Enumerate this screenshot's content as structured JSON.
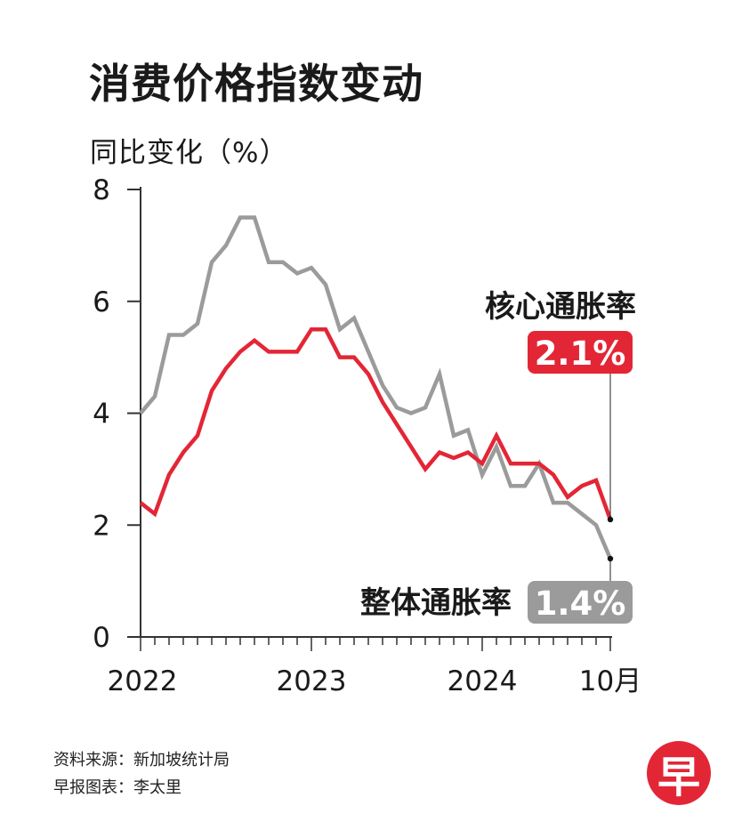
{
  "title": "消费价格指数变动",
  "ylabel": "同比变化（%）",
  "source_line1": "资料来源：新加坡统计局",
  "source_line2": "早报图表：李太里",
  "logo_text": "早",
  "colors": {
    "core": "#e32636",
    "headline": "#9b9b9b",
    "axis": "#333333"
  },
  "chart_data": {
    "type": "line",
    "ylim": [
      0,
      8
    ],
    "yticks": [
      0,
      2,
      4,
      6,
      8
    ],
    "x_tick_labels": [
      {
        "label": "2022",
        "month_index": 0
      },
      {
        "label": "2023",
        "month_index": 12
      },
      {
        "label": "2024",
        "month_index": 24
      },
      {
        "label": "10月",
        "month_index": 33
      }
    ],
    "months": [
      "2022-01",
      "2022-02",
      "2022-03",
      "2022-04",
      "2022-05",
      "2022-06",
      "2022-07",
      "2022-08",
      "2022-09",
      "2022-10",
      "2022-11",
      "2022-12",
      "2023-01",
      "2023-02",
      "2023-03",
      "2023-04",
      "2023-05",
      "2023-06",
      "2023-07",
      "2023-08",
      "2023-09",
      "2023-10",
      "2023-11",
      "2023-12",
      "2024-01",
      "2024-02",
      "2024-03",
      "2024-04",
      "2024-05",
      "2024-06",
      "2024-07",
      "2024-08",
      "2024-09",
      "2024-10"
    ],
    "series": [
      {
        "name": "核心通胀率",
        "key": "core",
        "end_label": "2.1%",
        "values": [
          2.4,
          2.2,
          2.9,
          3.3,
          3.6,
          4.4,
          4.8,
          5.1,
          5.3,
          5.1,
          5.1,
          5.1,
          5.5,
          5.5,
          5.0,
          5.0,
          4.7,
          4.2,
          3.8,
          3.4,
          3.0,
          3.3,
          3.2,
          3.3,
          3.1,
          3.6,
          3.1,
          3.1,
          3.1,
          2.9,
          2.5,
          2.7,
          2.8,
          2.1
        ]
      },
      {
        "name": "整体通胀率",
        "key": "headline",
        "end_label": "1.4%",
        "values": [
          4.0,
          4.3,
          5.4,
          5.4,
          5.6,
          6.7,
          7.0,
          7.5,
          7.5,
          6.7,
          6.7,
          6.5,
          6.6,
          6.3,
          5.5,
          5.7,
          5.1,
          4.5,
          4.1,
          4.0,
          4.1,
          4.7,
          3.6,
          3.7,
          2.9,
          3.4,
          2.7,
          2.7,
          3.1,
          2.4,
          2.4,
          2.2,
          2.0,
          1.4
        ]
      }
    ]
  }
}
